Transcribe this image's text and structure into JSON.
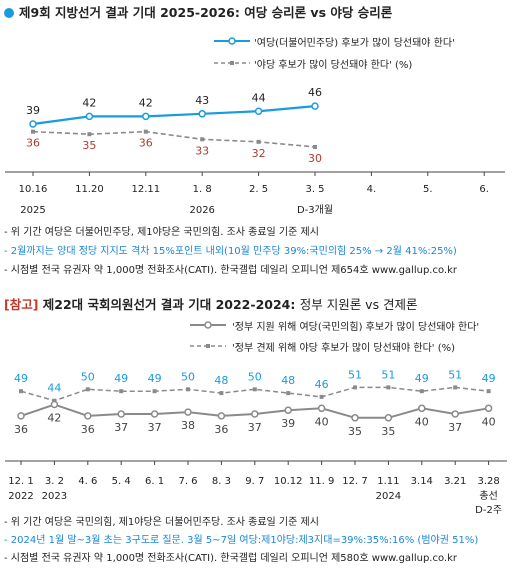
{
  "section1": {
    "title": "제9회 지방선거 결과 기대 2025-2026: 여당 승리론 vs 야당 승리론",
    "notes": [
      {
        "text": "- 위 기간 여당은 더불어민주당, 제1야당은 국민의힘. 조사 종료일 기준 제시",
        "blue": false
      },
      {
        "text": "- 2월까지는 양대 정당 지지도 격차 15%포인트 내외(10월 민주당 39%:국민의힘 25% → 2월 41%:25%)",
        "blue": true
      },
      {
        "text": "- 시점별 전국 유권자 약 1,000명 전화조사(CATI). 한국갤럽 데일리 오피니언 제654호 www.gallup.co.kr",
        "blue": false
      }
    ]
  },
  "section2": {
    "title_ref": "[참고]",
    "title_main": " 제22대 국회의원선거 결과 기대 2022-2024: ",
    "title_sub": "정부 지원론 vs 견제론",
    "notes": [
      {
        "text": "- 위 기간 여당은 국민의힘, 제1야당은 더불어민주당. 조사 종료일 기준 제시",
        "blue": false
      },
      {
        "text": "- 2024년 1월 말~3월 초는 3구도로 질문. 3월 5~7일 여당:제1야당:제3지대=39%:35%:16% (범야권 51%)",
        "blue": true
      },
      {
        "text": "- 시점별 전국 유권자 약 1,000명 전화조사(CATI). 한국갤럽 데일리 오피니언 제580호 www.gallup.co.kr",
        "blue": false
      }
    ]
  },
  "colors": {
    "blue": "#1a9be0",
    "gray": "#8a8a8a",
    "red": "#b03a2e",
    "teal": "#1a9be0"
  },
  "chart_data": [
    {
      "type": "line",
      "categories": [
        "10.16",
        "11.20",
        "12.11",
        "1. 8",
        "2. 5",
        "3. 5",
        "4.",
        "5.",
        "6."
      ],
      "x_sublabels": [
        "2025",
        "",
        "",
        "2026",
        "",
        "D-3개월",
        "",
        "",
        ""
      ],
      "series": [
        {
          "name": "'여당(더불어민주당) 후보가 많이 당선돼야 한다'",
          "style": "solid",
          "color": "#1a9be0",
          "label_color": "#222222",
          "values": [
            39,
            42,
            42,
            43,
            44,
            46,
            null,
            null,
            null
          ]
        },
        {
          "name": "'야당 후보가 많이 당선돼야 한다' (%)",
          "style": "dashed",
          "color": "#8a8a8a",
          "label_color": "#b03a2e",
          "values": [
            36,
            35,
            36,
            33,
            32,
            30,
            null,
            null,
            null
          ]
        }
      ]
    },
    {
      "type": "line",
      "categories": [
        "12. 1",
        "3. 2",
        "4. 6",
        "5. 4",
        "6. 1",
        "7. 6",
        "8. 3",
        "9. 7",
        "10.12",
        "11. 9",
        "12. 7",
        "1.11",
        "3.14",
        "3.21",
        "3.28"
      ],
      "x_sublabels": [
        "2022",
        "2023",
        "",
        "",
        "",
        "",
        "",
        "",
        "",
        "",
        "",
        "2024",
        "",
        "",
        "총선"
      ],
      "x_sublabels2": [
        "",
        "",
        "",
        "",
        "",
        "",
        "",
        "",
        "",
        "",
        "",
        "",
        "",
        "",
        "D-2주"
      ],
      "series": [
        {
          "name": "'정부 지원 위해 여당(국민의힘) 후보가 많이 당선돼야 한다'",
          "style": "solid",
          "color": "#8a8a8a",
          "label_color": "#444444",
          "values": [
            36,
            42,
            36,
            37,
            37,
            38,
            36,
            37,
            39,
            40,
            35,
            35,
            40,
            37,
            40
          ]
        },
        {
          "name": "'정부 견제 위해 야당 후보가 많이 당선돼야 한다' (%)",
          "style": "dashed",
          "color": "#8a8a8a",
          "label_color": "#1a9be0",
          "values": [
            49,
            44,
            50,
            49,
            49,
            50,
            48,
            50,
            48,
            46,
            51,
            51,
            49,
            51,
            49
          ]
        }
      ]
    }
  ]
}
